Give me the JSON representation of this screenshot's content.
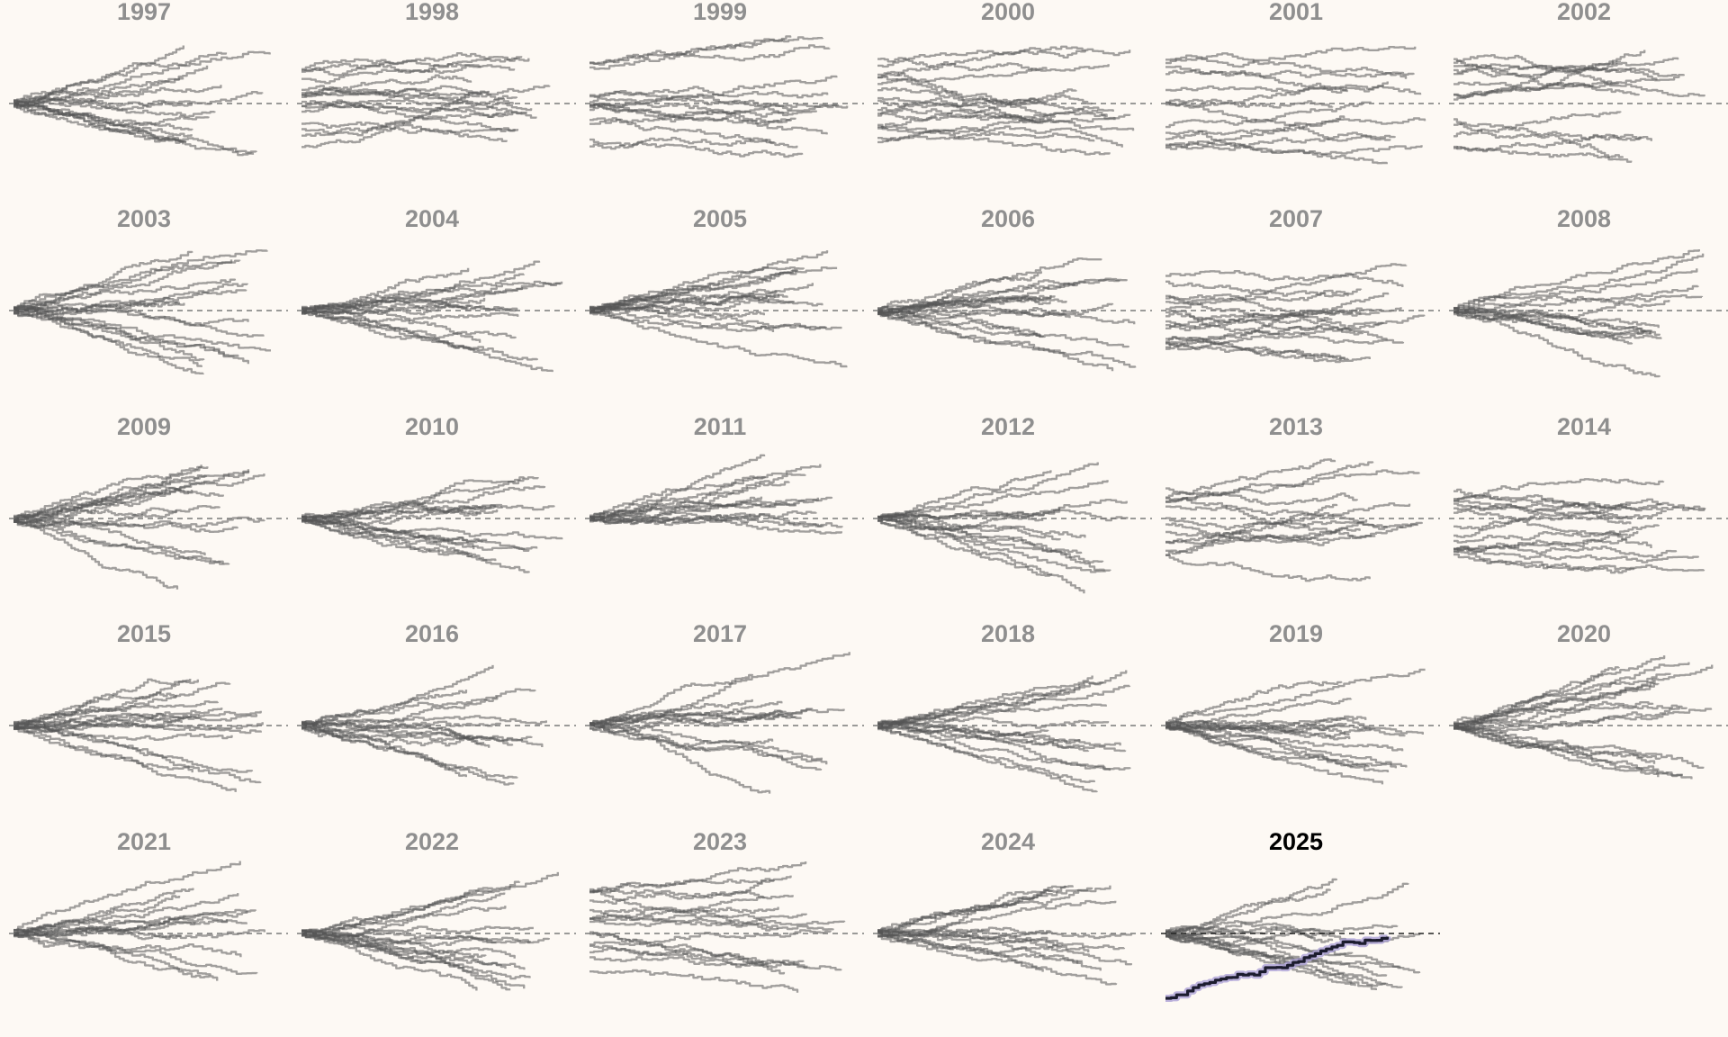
{
  "colors": {
    "background": "#fdf9f4",
    "title": "#8f8f8f",
    "highlight_title": "#000000",
    "trace": "#555555",
    "highlight_trace": "#1c1c2e",
    "highlight_glow": "#a79bd6",
    "zero_line": "#7a7a7a"
  },
  "chart_data": {
    "type": "line",
    "layout": "small-multiples",
    "highlight": "2025",
    "years": [
      {
        "title": "1997",
        "seed": 1,
        "pattern": "converge"
      },
      {
        "title": "1998",
        "seed": 2,
        "pattern": "spread"
      },
      {
        "title": "1999",
        "seed": 3,
        "pattern": "spread"
      },
      {
        "title": "2000",
        "seed": 4,
        "pattern": "spread"
      },
      {
        "title": "2001",
        "seed": 5,
        "pattern": "spread"
      },
      {
        "title": "2002",
        "seed": 6,
        "pattern": "spread"
      },
      {
        "title": "2003",
        "seed": 7,
        "pattern": "converge"
      },
      {
        "title": "2004",
        "seed": 8,
        "pattern": "converge"
      },
      {
        "title": "2005",
        "seed": 9,
        "pattern": "converge"
      },
      {
        "title": "2006",
        "seed": 10,
        "pattern": "converge"
      },
      {
        "title": "2007",
        "seed": 11,
        "pattern": "spread"
      },
      {
        "title": "2008",
        "seed": 12,
        "pattern": "converge"
      },
      {
        "title": "2009",
        "seed": 13,
        "pattern": "converge"
      },
      {
        "title": "2010",
        "seed": 14,
        "pattern": "converge"
      },
      {
        "title": "2011",
        "seed": 15,
        "pattern": "converge"
      },
      {
        "title": "2012",
        "seed": 16,
        "pattern": "converge"
      },
      {
        "title": "2013",
        "seed": 17,
        "pattern": "spread"
      },
      {
        "title": "2014",
        "seed": 18,
        "pattern": "spread"
      },
      {
        "title": "2015",
        "seed": 19,
        "pattern": "converge"
      },
      {
        "title": "2016",
        "seed": 20,
        "pattern": "converge"
      },
      {
        "title": "2017",
        "seed": 21,
        "pattern": "converge"
      },
      {
        "title": "2018",
        "seed": 22,
        "pattern": "converge"
      },
      {
        "title": "2019",
        "seed": 23,
        "pattern": "converge"
      },
      {
        "title": "2020",
        "seed": 24,
        "pattern": "converge"
      },
      {
        "title": "2021",
        "seed": 25,
        "pattern": "converge"
      },
      {
        "title": "2022",
        "seed": 26,
        "pattern": "converge"
      },
      {
        "title": "2023",
        "seed": 27,
        "pattern": "spread"
      },
      {
        "title": "2024",
        "seed": 28,
        "pattern": "converge"
      },
      {
        "title": "2025",
        "seed": 29,
        "pattern": "converge",
        "highlight_trace": true
      }
    ]
  }
}
